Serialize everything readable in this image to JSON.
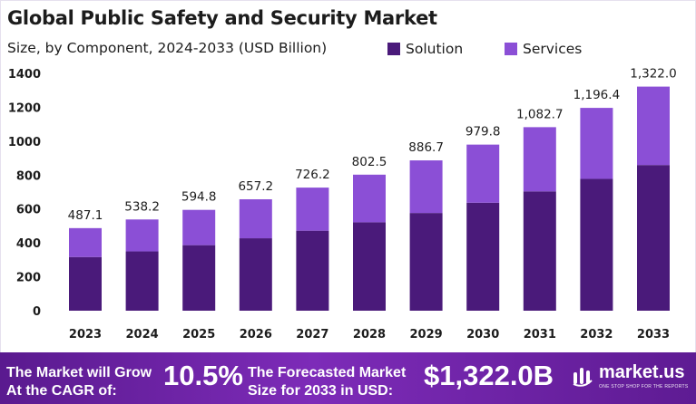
{
  "chart_data": {
    "type": "bar",
    "stacked": true,
    "title": "Global Public Safety and Security Market",
    "subtitle": "Size, by Component, 2024-2033 (USD Billion)",
    "categories": [
      "2023",
      "2024",
      "2025",
      "2026",
      "2027",
      "2028",
      "2029",
      "2030",
      "2031",
      "2032",
      "2033"
    ],
    "series": [
      {
        "name": "Solution",
        "color": "#4a1a7a",
        "values": [
          316.6,
          349.8,
          386.6,
          427.2,
          472.0,
          521.6,
          576.4,
          636.9,
          703.8,
          777.7,
          859.3
        ]
      },
      {
        "name": "Services",
        "color": "#8b4fd6",
        "values": [
          170.5,
          188.4,
          208.2,
          230.0,
          254.2,
          280.9,
          310.3,
          342.9,
          378.9,
          418.7,
          462.7
        ]
      }
    ],
    "totals": [
      487.1,
      538.2,
      594.8,
      657.2,
      726.2,
      802.5,
      886.7,
      979.8,
      1082.7,
      1196.4,
      1322.0
    ],
    "total_labels": [
      "487.1",
      "538.2",
      "594.8",
      "657.2",
      "726.2",
      "802.5",
      "886.7",
      "979.8",
      "1,082.7",
      "1,196.4",
      "1,322.0"
    ],
    "ylim": [
      0,
      1400
    ],
    "yticks": [
      0,
      200,
      400,
      600,
      800,
      1000,
      1200,
      1400
    ],
    "grid": false,
    "legend_position": "top-right"
  },
  "footer": {
    "grow_text_line1": "The Market will Grow",
    "grow_text_line2": "At the CAGR of:",
    "cagr": "10.5%",
    "forecast_text_line1": "The Forecasted Market",
    "forecast_text_line2": "Size for 2033 in USD:",
    "forecast_value": "$1,322.0B",
    "brand_name": "market.us",
    "brand_tagline": "ONE STOP SHOP FOR THE REPORTS"
  }
}
